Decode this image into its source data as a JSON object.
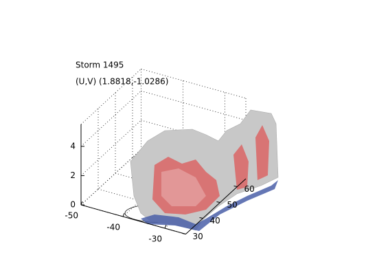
{
  "chart_data": {
    "type": "isosurface3d",
    "title": "Storm 1495",
    "subtitle": "(U,V) (1.8818,-1.0286)",
    "xlim": [
      -50,
      -25
    ],
    "xticks": [
      -50,
      -40,
      -30
    ],
    "ylim": [
      30,
      65
    ],
    "yticks": [
      30,
      40,
      50,
      60
    ],
    "zlim": [
      0,
      5.5
    ],
    "zticks": [
      0,
      2,
      4
    ],
    "grid": true
  }
}
